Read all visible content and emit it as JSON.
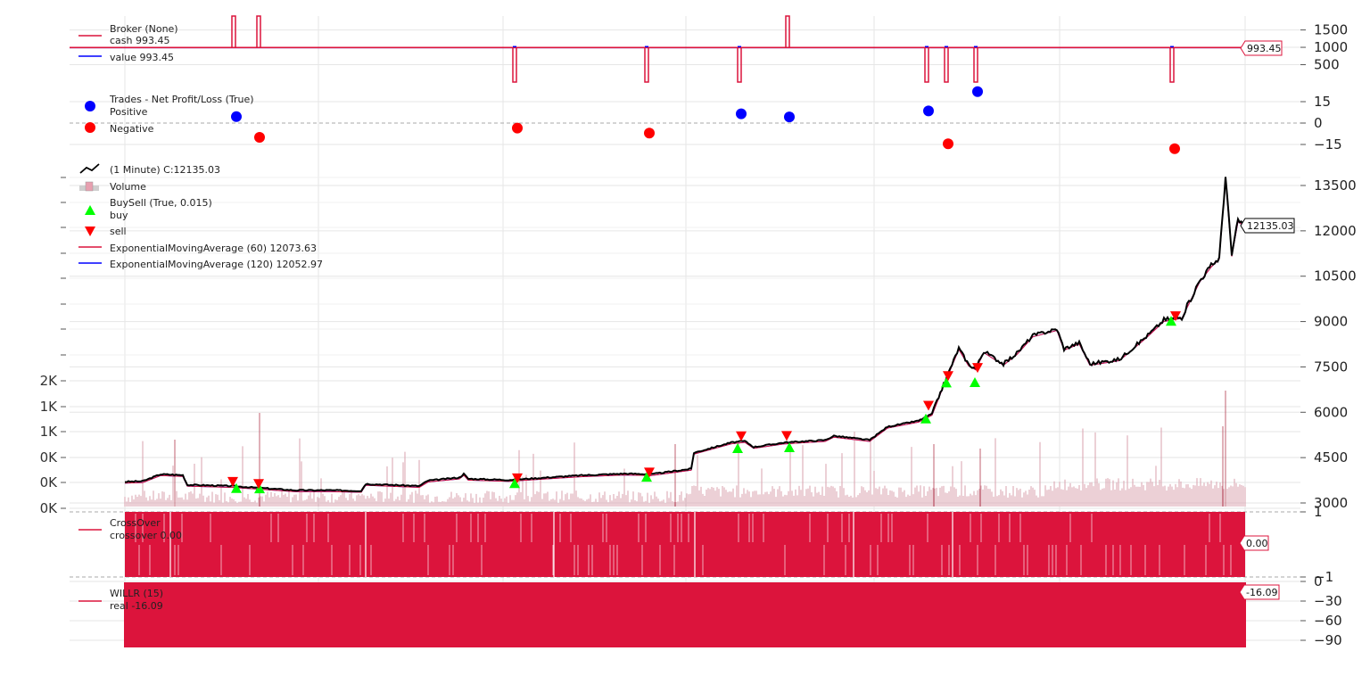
{
  "chart_data": {
    "type": "line",
    "panels": {
      "broker": {
        "legend_title": "Broker (None)",
        "series": [
          {
            "label": "cash 993.45",
            "color": "#dc143c"
          },
          {
            "label": "value 993.45",
            "color": "#0000ff"
          }
        ],
        "y_ticks": [
          {
            "value": 1500,
            "label": "1500"
          },
          {
            "value": 1000,
            "label": "1000"
          },
          {
            "value": 500,
            "label": "500"
          }
        ],
        "ylim": [
          0,
          1900
        ],
        "last_value_label": "993.45",
        "spikes_up": [
          {
            "x": 262,
            "v": 1900
          },
          {
            "x": 290,
            "v": 1900
          },
          {
            "x": 883,
            "v": 1900
          }
        ],
        "spikes_down": [
          {
            "x": 577,
            "v": 0
          },
          {
            "x": 725,
            "v": 0
          },
          {
            "x": 829,
            "v": 0
          },
          {
            "x": 1039,
            "v": 0
          },
          {
            "x": 1061,
            "v": 0
          },
          {
            "x": 1094,
            "v": 0
          },
          {
            "x": 1314,
            "v": 0
          }
        ]
      },
      "trades": {
        "legend_title": "Trades - Net Profit/Loss (True)",
        "series": [
          {
            "label": "Positive",
            "color": "#0000ff"
          },
          {
            "label": "Negative",
            "color": "#ff0000"
          }
        ],
        "y_ticks": [
          {
            "value": 15,
            "label": "15"
          },
          {
            "value": 0,
            "label": "0"
          },
          {
            "value": -15,
            "label": "−15"
          }
        ],
        "positive_points": [
          {
            "x": 265,
            "v": 4.5
          },
          {
            "x": 831,
            "v": 6.5
          },
          {
            "x": 885,
            "v": 4.3
          },
          {
            "x": 1041,
            "v": 8.5
          },
          {
            "x": 1096,
            "v": 22
          }
        ],
        "negative_points": [
          {
            "x": 291,
            "v": -10
          },
          {
            "x": 580,
            "v": -3.5
          },
          {
            "x": 728,
            "v": -7
          },
          {
            "x": 1063,
            "v": -14.5
          },
          {
            "x": 1317,
            "v": -18
          }
        ]
      },
      "price": {
        "legend_title": " (1 Minute) C:12135.03",
        "legend_items": [
          {
            "label": "Volume",
            "kind": "volume"
          },
          {
            "label": "BuySell (True, 0.015)",
            "kind": "none"
          },
          {
            "label": "buy",
            "kind": "buy"
          },
          {
            "label": "sell",
            "kind": "sell"
          },
          {
            "label": "ExponentialMovingAverage (60) 12073.63",
            "kind": "line-red"
          },
          {
            "label": "ExponentialMovingAverage (120) 12052.97",
            "kind": "line-blue"
          }
        ],
        "y_ticks": [
          {
            "value": 13500,
            "label": "13500"
          },
          {
            "value": 12000,
            "label": "12000"
          },
          {
            "value": 10500,
            "label": "10500"
          },
          {
            "value": 9000,
            "label": "9000"
          },
          {
            "value": 7500,
            "label": "7500"
          },
          {
            "value": 6000,
            "label": "6000"
          },
          {
            "value": 4500,
            "label": "4500"
          },
          {
            "value": 3000,
            "label": "3000"
          }
        ],
        "volume_ticks": [
          "2K",
          "1K",
          "1K",
          "0K",
          "0K",
          "0K"
        ],
        "last_value_label": "12135.03",
        "close_path": [
          [
            140,
            3700
          ],
          [
            160,
            3720
          ],
          [
            180,
            3950
          ],
          [
            205,
            3920
          ],
          [
            210,
            3600
          ],
          [
            260,
            3560
          ],
          [
            290,
            3500
          ],
          [
            330,
            3420
          ],
          [
            370,
            3420
          ],
          [
            405,
            3400
          ],
          [
            410,
            3630
          ],
          [
            470,
            3560
          ],
          [
            480,
            3740
          ],
          [
            515,
            3840
          ],
          [
            520,
            3960
          ],
          [
            525,
            3800
          ],
          [
            570,
            3760
          ],
          [
            650,
            3910
          ],
          [
            700,
            3970
          ],
          [
            730,
            3950
          ],
          [
            775,
            4130
          ],
          [
            778,
            4660
          ],
          [
            820,
            5000
          ],
          [
            835,
            5050
          ],
          [
            845,
            4850
          ],
          [
            880,
            5000
          ],
          [
            925,
            5080
          ],
          [
            935,
            5220
          ],
          [
            975,
            5080
          ],
          [
            995,
            5520
          ],
          [
            1030,
            5720
          ],
          [
            1045,
            5950
          ],
          [
            1058,
            6920
          ],
          [
            1075,
            8120
          ],
          [
            1086,
            7580
          ],
          [
            1094,
            7450
          ],
          [
            1103,
            8020
          ],
          [
            1125,
            7600
          ],
          [
            1140,
            7950
          ],
          [
            1158,
            8540
          ],
          [
            1185,
            8750
          ],
          [
            1193,
            8100
          ],
          [
            1210,
            8300
          ],
          [
            1222,
            7600
          ],
          [
            1255,
            7750
          ],
          [
            1285,
            8500
          ],
          [
            1305,
            9050
          ],
          [
            1325,
            9150
          ],
          [
            1345,
            10350
          ],
          [
            1358,
            10850
          ],
          [
            1367,
            11100
          ],
          [
            1374,
            13800
          ],
          [
            1381,
            11200
          ],
          [
            1388,
            12350
          ],
          [
            1397,
            12150
          ]
        ],
        "buys": [
          {
            "x": 265,
            "v": 3480
          },
          {
            "x": 291,
            "v": 3470
          },
          {
            "x": 577,
            "v": 3640
          },
          {
            "x": 725,
            "v": 3850
          },
          {
            "x": 827,
            "v": 4800
          },
          {
            "x": 885,
            "v": 4830
          },
          {
            "x": 1038,
            "v": 5780
          },
          {
            "x": 1061,
            "v": 6970
          },
          {
            "x": 1093,
            "v": 6980
          },
          {
            "x": 1313,
            "v": 9010
          }
        ],
        "sells": [
          {
            "x": 261,
            "v": 3710
          },
          {
            "x": 290,
            "v": 3640
          },
          {
            "x": 580,
            "v": 3830
          },
          {
            "x": 728,
            "v": 4020
          },
          {
            "x": 831,
            "v": 5220
          },
          {
            "x": 882,
            "v": 5230
          },
          {
            "x": 1041,
            "v": 6230
          },
          {
            "x": 1063,
            "v": 7210
          },
          {
            "x": 1096,
            "v": 7480
          },
          {
            "x": 1318,
            "v": 9190
          }
        ]
      },
      "crossover": {
        "legend_title": "CrossOver",
        "series": [
          {
            "label": "crossover 0.00",
            "color": "#dc143c"
          }
        ],
        "y_ticks": [
          {
            "value": 1,
            "label": "1"
          },
          {
            "value": -1,
            "label": "−1"
          }
        ],
        "last_value_label": "0.00"
      },
      "willr": {
        "legend_title": "WILLR (15)",
        "series": [
          {
            "label": "real -16.09",
            "color": "#dc143c"
          }
        ],
        "y_ticks": [
          {
            "value": 0,
            "label": "0"
          },
          {
            "value": -30,
            "label": "−30"
          },
          {
            "value": -60,
            "label": "−60"
          },
          {
            "value": -90,
            "label": "−90"
          }
        ],
        "last_value_label": "-16.09"
      }
    },
    "grid": true,
    "colors": {
      "cash": "#dc143c",
      "value": "#0000ff",
      "close": "#000000",
      "buy": "#00ff00",
      "sell": "#ff0000",
      "volume": "#d9a0ad",
      "indicator_fill": "#dc143c",
      "grid": "#e6e6e6"
    }
  }
}
